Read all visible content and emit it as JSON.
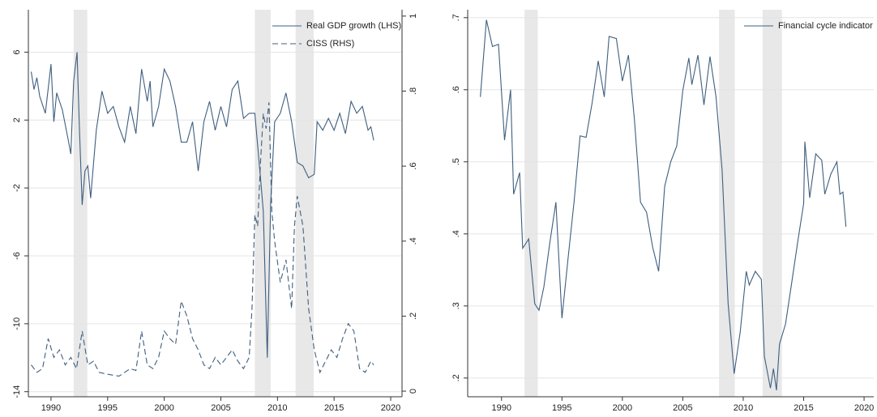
{
  "chart_data": [
    {
      "type": "line",
      "xlim": [
        1988,
        2021
      ],
      "xticks": [
        1990,
        1995,
        2000,
        2005,
        2010,
        2015,
        2020
      ],
      "ylim": [
        -14.3,
        8.5
      ],
      "yticks": [
        -14,
        -10,
        -6,
        -2,
        2,
        6
      ],
      "y2lim": [
        -0.015,
        1.017
      ],
      "y2ticks": [
        0,
        {
          "value": 0.2,
          "label": ".2"
        },
        {
          "value": 0.4,
          "label": ".4"
        },
        {
          "value": 0.6,
          "label": ".6"
        },
        {
          "value": 0.8,
          "label": ".8"
        },
        1
      ],
      "grid": true,
      "legend": "top-right",
      "shade_color": "#e8e8e8",
      "shaded_periods": [
        [
          1992.0,
          1993.2
        ],
        [
          2008.0,
          2009.4
        ],
        [
          2011.6,
          2013.2
        ]
      ],
      "series": [
        {
          "name": "Real GDP growth (LHS)",
          "color": "#3f5f7f",
          "line_style": "solid",
          "x": [
            1988.25,
            1988.5,
            1988.75,
            1989,
            1989.5,
            1990,
            1990.25,
            1990.5,
            1991,
            1991.5,
            1991.75,
            1992,
            1992.3,
            1992.5,
            1992.75,
            1993,
            1993.25,
            1993.5,
            1994,
            1994.5,
            1995,
            1995.5,
            1996,
            1996.5,
            1997,
            1997.5,
            1998,
            1998.5,
            1998.75,
            1999,
            1999.5,
            2000,
            2000.5,
            2001,
            2001.5,
            2002,
            2002.5,
            2003,
            2003.5,
            2004,
            2004.5,
            2005,
            2005.5,
            2006,
            2006.5,
            2007,
            2007.5,
            2008,
            2008.5,
            2008.75,
            2009.1,
            2009.4,
            2009.75,
            2010.25,
            2010.75,
            2011.25,
            2011.75,
            2012.25,
            2012.75,
            2013.25,
            2013.5,
            2014,
            2014.5,
            2015,
            2015.5,
            2016,
            2016.5,
            2017,
            2017.5,
            2018,
            2018.25,
            2018.5
          ],
          "values": [
            4.85,
            3.8,
            4.5,
            3.4,
            2.4,
            5.3,
            1.9,
            3.6,
            2.6,
            0.9,
            0,
            4.3,
            6,
            1.7,
            -3,
            -1,
            -0.7,
            -2.6,
            1.4,
            3.7,
            2.4,
            2.8,
            1.6,
            0.7,
            2.8,
            1.2,
            5,
            3.1,
            4.3,
            1.6,
            2.8,
            5,
            4.3,
            2.8,
            0.7,
            0.7,
            1.9,
            -1,
            1.9,
            3.1,
            1.4,
            2.8,
            1.6,
            3.8,
            4.3,
            2.1,
            2.4,
            2.4,
            -1.4,
            -3.4,
            -12,
            -2.9,
            1.9,
            2.4,
            3.6,
            1.9,
            -0.5,
            -0.7,
            -1.4,
            -1.2,
            1.9,
            1.4,
            2.1,
            1.4,
            2.4,
            1.2,
            3.1,
            2.4,
            2.8,
            1.4,
            1.6,
            0.8
          ]
        },
        {
          "name": "CISS (RHS)",
          "color": "#3f5f7f",
          "line_style": "dashed",
          "axis": "y2",
          "x": [
            1988.25,
            1988.75,
            1989.25,
            1989.75,
            1990.25,
            1990.75,
            1991.25,
            1991.75,
            1992.25,
            1992.75,
            1993.25,
            1993.75,
            1994.25,
            1995,
            1996,
            1997,
            1997.5,
            1998,
            1998.5,
            1999,
            1999.5,
            2000,
            2000.5,
            2001,
            2001.5,
            2002,
            2002.5,
            2003,
            2003.5,
            2004,
            2004.5,
            2005,
            2005.5,
            2006,
            2006.5,
            2007,
            2007.5,
            2007.75,
            2008,
            2008.25,
            2008.5,
            2008.75,
            2009,
            2009.25,
            2009.5,
            2009.75,
            2010.25,
            2010.75,
            2011.25,
            2011.5,
            2011.75,
            2012.25,
            2012.75,
            2013.25,
            2013.75,
            2014.25,
            2014.75,
            2015.25,
            2015.75,
            2016.25,
            2016.75,
            2017.25,
            2017.75,
            2018.25,
            2018.5
          ],
          "values": [
            0.07,
            0.05,
            0.06,
            0.14,
            0.09,
            0.11,
            0.07,
            0.09,
            0.06,
            0.16,
            0.07,
            0.08,
            0.05,
            0.045,
            0.04,
            0.06,
            0.055,
            0.16,
            0.07,
            0.06,
            0.09,
            0.16,
            0.14,
            0.125,
            0.24,
            0.2,
            0.14,
            0.11,
            0.07,
            0.06,
            0.09,
            0.07,
            0.09,
            0.11,
            0.08,
            0.06,
            0.09,
            0.22,
            0.47,
            0.44,
            0.61,
            0.74,
            0.7,
            0.77,
            0.48,
            0.4,
            0.29,
            0.35,
            0.22,
            0.44,
            0.52,
            0.44,
            0.22,
            0.11,
            0.05,
            0.08,
            0.11,
            0.09,
            0.14,
            0.18,
            0.16,
            0.06,
            0.05,
            0.08,
            0.07
          ]
        }
      ]
    },
    {
      "type": "line",
      "xlim": [
        1987.2,
        2020.8
      ],
      "xticks": [
        1990,
        1995,
        2000,
        2005,
        2010,
        2015,
        2020
      ],
      "ylim": [
        0.174,
        0.711
      ],
      "yticks": [
        {
          "value": 0.2,
          "label": ".2"
        },
        {
          "value": 0.3,
          "label": ".3"
        },
        {
          "value": 0.4,
          "label": ".4"
        },
        {
          "value": 0.5,
          "label": ".5"
        },
        {
          "value": 0.6,
          "label": ".6"
        },
        {
          "value": 0.7,
          "label": ".7"
        }
      ],
      "grid": true,
      "legend": "top-right",
      "shade_color": "#e8e8e8",
      "shaded_periods": [
        [
          1991.9,
          1993.0
        ],
        [
          2008.0,
          2009.3
        ],
        [
          2011.6,
          2013.2
        ]
      ],
      "series": [
        {
          "name": "Financial cycle indicator",
          "color": "#3f5f7f",
          "line_style": "solid",
          "x": [
            1988.25,
            1988.75,
            1989.25,
            1989.75,
            1990.25,
            1990.75,
            1991,
            1991.5,
            1991.75,
            1992.25,
            1992.75,
            1993.1,
            1993.5,
            1994,
            1994.5,
            1995,
            1995.5,
            1996,
            1996.5,
            1997,
            1997.5,
            1998,
            1998.5,
            1998.9,
            1999.5,
            2000,
            2000.5,
            2001,
            2001.5,
            2002,
            2002.5,
            2003,
            2003.5,
            2004,
            2004.5,
            2005,
            2005.5,
            2005.75,
            2006.25,
            2006.75,
            2007.25,
            2007.75,
            2008.25,
            2008.75,
            2009.25,
            2009.75,
            2010.25,
            2010.5,
            2011,
            2011.5,
            2011.75,
            2012.25,
            2012.5,
            2012.75,
            2013,
            2013.5,
            2014,
            2014.5,
            2015,
            2015.1,
            2015.5,
            2016,
            2016.5,
            2016.75,
            2017.25,
            2017.75,
            2018,
            2018.25,
            2018.5
          ],
          "values": [
            0.59,
            0.697,
            0.66,
            0.663,
            0.53,
            0.6,
            0.455,
            0.485,
            0.38,
            0.393,
            0.303,
            0.294,
            0.326,
            0.388,
            0.444,
            0.283,
            0.365,
            0.444,
            0.536,
            0.534,
            0.582,
            0.64,
            0.59,
            0.674,
            0.671,
            0.612,
            0.648,
            0.558,
            0.444,
            0.43,
            0.382,
            0.348,
            0.466,
            0.5,
            0.522,
            0.599,
            0.644,
            0.607,
            0.648,
            0.579,
            0.646,
            0.59,
            0.489,
            0.303,
            0.206,
            0.264,
            0.348,
            0.329,
            0.348,
            0.337,
            0.23,
            0.186,
            0.213,
            0.183,
            0.247,
            0.275,
            0.331,
            0.388,
            0.442,
            0.528,
            0.45,
            0.511,
            0.502,
            0.455,
            0.483,
            0.5,
            0.455,
            0.458,
            0.41
          ]
        }
      ]
    }
  ]
}
